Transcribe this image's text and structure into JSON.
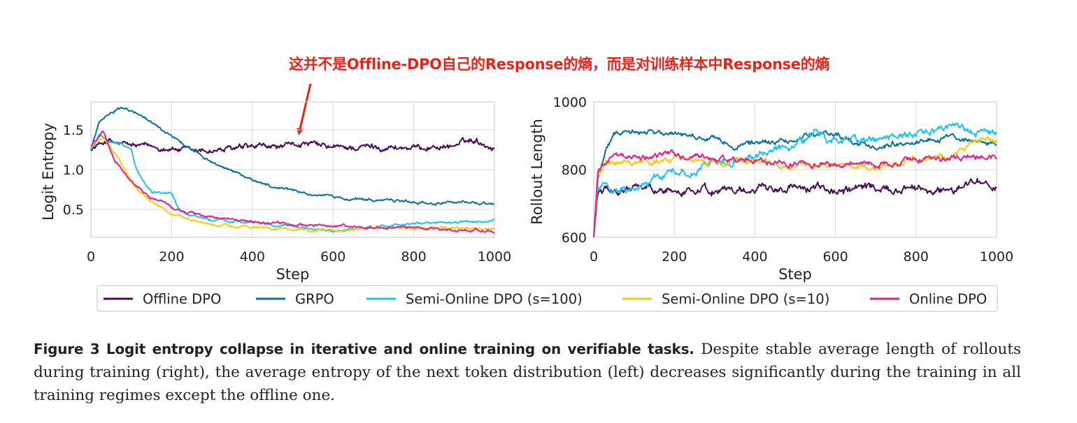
{
  "annotation": "这并不是Offline-DPO自己的Response的熵，而是对训练样本中Response的熵",
  "legend": [
    {
      "label": "Offline DPO",
      "color": "#4b0a5c"
    },
    {
      "label": "GRPO",
      "color": "#0e6e9e"
    },
    {
      "label": "Semi-Online DPO (s=100)",
      "color": "#1ec3f0"
    },
    {
      "label": "Semi-Online DPO (s=10)",
      "color": "#f7cb0e"
    },
    {
      "label": "Online DPO",
      "color": "#ec1e8c"
    }
  ],
  "caption": {
    "lead": "Figure 3  Logit entropy collapse in iterative and online training on verifiable tasks.",
    "body": " Despite stable average length of rollouts during training (right), the average entropy of the next token distribution (left) decreases significantly during the training in all training regimes except the offline one."
  },
  "chart_data": [
    {
      "type": "line",
      "title": "",
      "xlabel": "Step",
      "ylabel": "Logit Entropy",
      "xlim": [
        0,
        1000
      ],
      "ylim": [
        0.15,
        1.85
      ],
      "xticks": [
        0,
        200,
        400,
        600,
        800,
        1000
      ],
      "yticks": [
        0.5,
        1.0,
        1.5
      ],
      "ytick_labels": [
        "0.5",
        "1.0",
        "1.5"
      ],
      "grid": true,
      "series": [
        {
          "name": "Offline DPO",
          "color": "#4b0a5c",
          "noise": 0.03,
          "x": [
            0,
            40,
            60,
            100,
            150,
            200,
            250,
            300,
            400,
            500,
            520,
            600,
            700,
            800,
            900,
            950,
            1000
          ],
          "y": [
            1.25,
            1.37,
            1.33,
            1.3,
            1.28,
            1.27,
            1.22,
            1.24,
            1.27,
            1.29,
            1.33,
            1.27,
            1.29,
            1.27,
            1.3,
            1.38,
            1.27
          ]
        },
        {
          "name": "GRPO",
          "color": "#0e6e9e",
          "noise": 0.014,
          "x": [
            0,
            20,
            50,
            80,
            100,
            150,
            200,
            300,
            400,
            500,
            600,
            700,
            800,
            900,
            1000
          ],
          "y": [
            1.25,
            1.6,
            1.73,
            1.77,
            1.73,
            1.6,
            1.4,
            1.1,
            0.87,
            0.72,
            0.65,
            0.62,
            0.59,
            0.58,
            0.57
          ]
        },
        {
          "name": "Semi-Online DPO (s=100)",
          "color": "#1ec3f0",
          "noise": 0.012,
          "x": [
            0,
            20,
            50,
            100,
            110,
            130,
            150,
            200,
            220,
            250,
            300,
            400,
            500,
            600,
            700,
            800,
            900,
            1000
          ],
          "y": [
            1.25,
            1.42,
            1.35,
            1.27,
            1.05,
            0.85,
            0.72,
            0.7,
            0.5,
            0.42,
            0.37,
            0.33,
            0.29,
            0.23,
            0.28,
            0.32,
            0.34,
            0.37
          ]
        },
        {
          "name": "Semi-Online DPO (s=10)",
          "color": "#f7cb0e",
          "noise": 0.012,
          "x": [
            0,
            30,
            60,
            100,
            150,
            200,
            250,
            300,
            400,
            500,
            600,
            700,
            800,
            900,
            1000
          ],
          "y": [
            1.3,
            1.4,
            1.2,
            0.85,
            0.6,
            0.45,
            0.36,
            0.31,
            0.27,
            0.25,
            0.24,
            0.26,
            0.27,
            0.27,
            0.26
          ]
        },
        {
          "name": "Online DPO",
          "color": "#ec1e8c",
          "noise": 0.014,
          "x": [
            0,
            30,
            40,
            60,
            100,
            150,
            200,
            250,
            300,
            400,
            500,
            600,
            700,
            800,
            900,
            1000
          ],
          "y": [
            1.3,
            1.48,
            1.35,
            1.1,
            0.85,
            0.65,
            0.52,
            0.45,
            0.4,
            0.34,
            0.31,
            0.29,
            0.28,
            0.26,
            0.24,
            0.23
          ]
        }
      ]
    },
    {
      "type": "line",
      "title": "",
      "xlabel": "Step",
      "ylabel": "Rollout Length",
      "xlim": [
        0,
        1000
      ],
      "ylim": [
        600,
        1000
      ],
      "xticks": [
        0,
        200,
        400,
        600,
        800,
        1000
      ],
      "yticks": [
        600,
        800,
        1000
      ],
      "ytick_labels": [
        "600",
        "800",
        "1000"
      ],
      "grid": true,
      "series": [
        {
          "name": "Offline DPO",
          "color": "#4b0a5c",
          "noise": 9,
          "x": [
            0,
            10,
            30,
            50,
            100,
            200,
            300,
            400,
            500,
            600,
            700,
            800,
            900,
            950,
            1000
          ],
          "y": [
            600,
            730,
            748,
            740,
            745,
            738,
            740,
            742,
            748,
            735,
            742,
            737,
            748,
            762,
            752
          ]
        },
        {
          "name": "GRPO",
          "color": "#0e6e9e",
          "noise": 6,
          "x": [
            0,
            10,
            30,
            50,
            100,
            150,
            200,
            300,
            350,
            400,
            500,
            580,
            650,
            700,
            800,
            900,
            950,
            1000
          ],
          "y": [
            600,
            780,
            860,
            900,
            910,
            915,
            905,
            890,
            870,
            878,
            885,
            910,
            880,
            865,
            885,
            895,
            880,
            872
          ]
        },
        {
          "name": "Semi-Online DPO (s=100)",
          "color": "#1ec3f0",
          "noise": 9,
          "x": [
            0,
            10,
            30,
            50,
            100,
            150,
            200,
            300,
            400,
            500,
            550,
            600,
            700,
            800,
            900,
            1000
          ],
          "y": [
            600,
            760,
            740,
            730,
            748,
            770,
            790,
            820,
            840,
            880,
            900,
            885,
            890,
            915,
            920,
            908
          ]
        },
        {
          "name": "Semi-Online DPO (s=10)",
          "color": "#f7cb0e",
          "noise": 7,
          "x": [
            0,
            10,
            30,
            50,
            100,
            200,
            300,
            400,
            500,
            600,
            700,
            800,
            900,
            950,
            1000
          ],
          "y": [
            600,
            790,
            820,
            825,
            815,
            835,
            820,
            820,
            812,
            815,
            808,
            830,
            850,
            882,
            885
          ]
        },
        {
          "name": "Online DPO",
          "color": "#ec1e8c",
          "noise": 7,
          "x": [
            0,
            10,
            30,
            50,
            100,
            200,
            300,
            400,
            500,
            600,
            700,
            800,
            900,
            1000
          ],
          "y": [
            600,
            800,
            830,
            845,
            835,
            840,
            828,
            826,
            818,
            812,
            815,
            828,
            838,
            843
          ]
        }
      ]
    }
  ]
}
